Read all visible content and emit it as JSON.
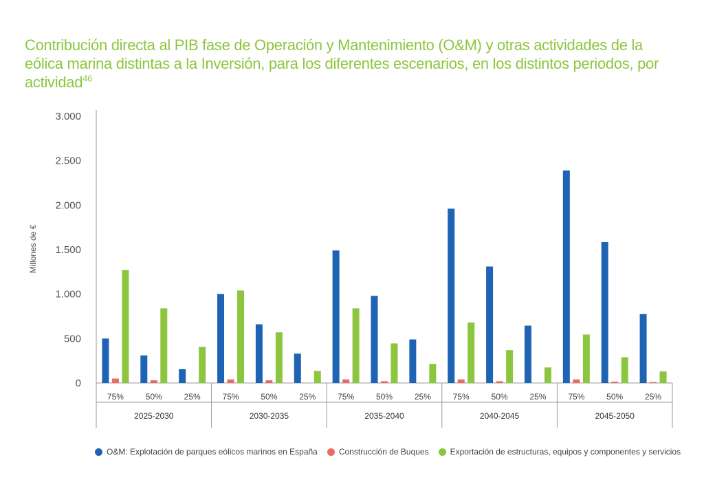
{
  "chart_data": {
    "type": "bar",
    "title": "Contribución directa al PIB fase de Operación y Mantenimiento (O&M) y otras actividades de la eólica marina distintas a la Inversión, para los diferentes escenarios, en los distintos periodos, por actividad",
    "title_superscript": "46",
    "ylabel": "Millones de €",
    "xlabel": "",
    "ylim": [
      0,
      3000
    ],
    "yticks": [
      0,
      500,
      1000,
      1500,
      2000,
      2500,
      3000
    ],
    "ytick_labels": [
      "0",
      "500",
      "1.000",
      "1.500",
      "2.000",
      "2.500",
      "3.000"
    ],
    "groups": [
      "2025-2030",
      "2030-2035",
      "2035-2040",
      "2040-2045",
      "2045-2050"
    ],
    "scenarios": [
      "75%",
      "50%",
      "25%"
    ],
    "grid": false,
    "legend_position": "bottom",
    "series": [
      {
        "name": "O&M: Explotación de parques eólicos marinos en España",
        "color": "#1f63b4",
        "values": [
          500,
          310,
          155,
          1000,
          660,
          330,
          1490,
          980,
          490,
          1960,
          1310,
          645,
          2390,
          1585,
          775
        ]
      },
      {
        "name": "Construcción de Buques",
        "color": "#e86b63",
        "values": [
          50,
          30,
          0,
          40,
          30,
          0,
          40,
          20,
          0,
          40,
          20,
          0,
          40,
          15,
          10
        ]
      },
      {
        "name": "Exportación de estructuras, equipos y componentes y servicios",
        "color": "#8cc63f",
        "values": [
          1270,
          840,
          405,
          1040,
          570,
          135,
          840,
          445,
          215,
          680,
          370,
          175,
          545,
          290,
          130
        ]
      }
    ]
  }
}
